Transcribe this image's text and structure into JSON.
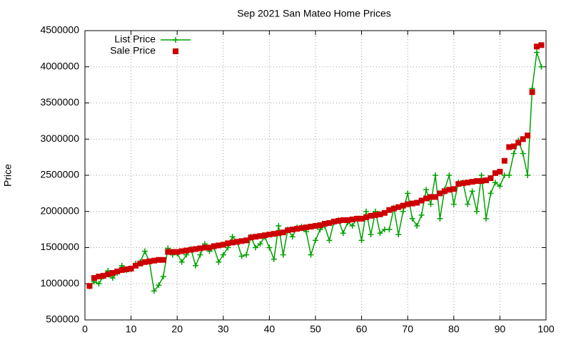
{
  "chart_data": {
    "type": "line",
    "title": "Sep 2021 San Mateo Home Prices",
    "ylabel": "Price",
    "x": [
      1,
      2,
      3,
      4,
      5,
      6,
      7,
      8,
      9,
      10,
      11,
      12,
      13,
      14,
      15,
      16,
      17,
      18,
      19,
      20,
      21,
      22,
      23,
      24,
      25,
      26,
      27,
      28,
      29,
      30,
      31,
      32,
      33,
      34,
      35,
      36,
      37,
      38,
      39,
      40,
      41,
      42,
      43,
      44,
      45,
      46,
      47,
      48,
      49,
      50,
      51,
      52,
      53,
      54,
      55,
      56,
      57,
      58,
      59,
      60,
      61,
      62,
      63,
      64,
      65,
      66,
      67,
      68,
      69,
      70,
      71,
      72,
      73,
      74,
      75,
      76,
      77,
      78,
      79,
      80,
      81,
      82,
      83,
      84,
      85,
      86,
      87,
      88,
      89,
      90,
      91,
      92,
      93,
      94,
      95,
      96,
      97,
      98,
      99
    ],
    "series": [
      {
        "name": "List Price",
        "color": "#00a000",
        "style": "linespoints",
        "values": [
          960000,
          1030000,
          1000000,
          1100000,
          1180000,
          1080000,
          1150000,
          1250000,
          1190000,
          1200000,
          1280000,
          1300000,
          1450000,
          1300000,
          900000,
          980000,
          1100000,
          1490000,
          1400000,
          1420000,
          1300000,
          1400000,
          1480000,
          1250000,
          1400000,
          1550000,
          1450000,
          1500000,
          1300000,
          1400000,
          1500000,
          1650000,
          1580000,
          1380000,
          1400000,
          1650000,
          1500000,
          1550000,
          1650000,
          1500000,
          1340000,
          1800000,
          1400000,
          1750000,
          1650000,
          1780000,
          1790000,
          1720000,
          1400000,
          1600000,
          1750000,
          1800000,
          1600000,
          1850000,
          1880000,
          1700000,
          1850000,
          1800000,
          1900000,
          1600000,
          2000000,
          1680000,
          2000000,
          1700000,
          1750000,
          1750000,
          2050000,
          1680000,
          2000000,
          2250000,
          1900000,
          1800000,
          1950000,
          2300000,
          2100000,
          2500000,
          1900000,
          2300000,
          2500000,
          2100000,
          2400000,
          2400000,
          2100000,
          2280000,
          2000000,
          2500000,
          1900000,
          2250000,
          2400000,
          2350000,
          2500000,
          2500000,
          2800000,
          2980000,
          2800000,
          2500000,
          3700000,
          4200000,
          4000000
        ]
      },
      {
        "name": "Sale Price",
        "color": "#cc0000",
        "style": "points",
        "values": [
          970000,
          1080000,
          1100000,
          1110000,
          1130000,
          1150000,
          1170000,
          1190000,
          1200000,
          1210000,
          1250000,
          1280000,
          1300000,
          1310000,
          1320000,
          1330000,
          1330000,
          1440000,
          1440000,
          1440000,
          1450000,
          1460000,
          1470000,
          1480000,
          1490000,
          1500000,
          1500000,
          1520000,
          1530000,
          1540000,
          1560000,
          1570000,
          1580000,
          1590000,
          1600000,
          1640000,
          1650000,
          1660000,
          1670000,
          1680000,
          1690000,
          1700000,
          1710000,
          1740000,
          1750000,
          1760000,
          1770000,
          1780000,
          1790000,
          1800000,
          1810000,
          1830000,
          1840000,
          1860000,
          1870000,
          1880000,
          1880000,
          1890000,
          1900000,
          1900000,
          1920000,
          1940000,
          1950000,
          1960000,
          1980000,
          2020000,
          2040000,
          2060000,
          2080000,
          2100000,
          2110000,
          2120000,
          2150000,
          2180000,
          2200000,
          2200000,
          2250000,
          2280000,
          2300000,
          2310000,
          2380000,
          2390000,
          2400000,
          2410000,
          2420000,
          2420000,
          2430000,
          2460000,
          2530000,
          2550000,
          2700000,
          2890000,
          2900000,
          2950000,
          3000000,
          3050000,
          3650000,
          4280000,
          4300000
        ]
      }
    ],
    "xlim": [
      0,
      100
    ],
    "xticks": [
      0,
      10,
      20,
      30,
      40,
      50,
      60,
      70,
      80,
      90,
      100
    ],
    "ylim": [
      500000,
      4500000
    ],
    "yticks": [
      500000,
      1000000,
      1500000,
      2000000,
      2500000,
      3000000,
      3500000,
      4000000,
      4500000
    ],
    "grid": true,
    "legend": "top-left"
  }
}
